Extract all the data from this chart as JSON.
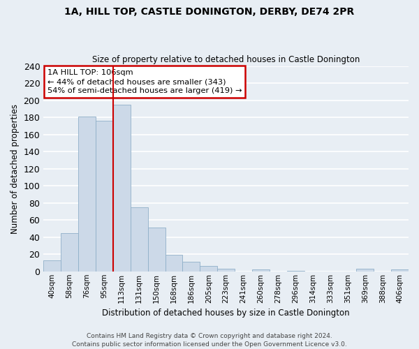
{
  "title": "1A, HILL TOP, CASTLE DONINGTON, DERBY, DE74 2PR",
  "subtitle": "Size of property relative to detached houses in Castle Donington",
  "xlabel": "Distribution of detached houses by size in Castle Donington",
  "ylabel": "Number of detached properties",
  "bin_labels": [
    "40sqm",
    "58sqm",
    "76sqm",
    "95sqm",
    "113sqm",
    "131sqm",
    "150sqm",
    "168sqm",
    "186sqm",
    "205sqm",
    "223sqm",
    "241sqm",
    "260sqm",
    "278sqm",
    "296sqm",
    "314sqm",
    "333sqm",
    "351sqm",
    "369sqm",
    "388sqm",
    "406sqm"
  ],
  "bar_heights": [
    13,
    45,
    181,
    176,
    195,
    75,
    51,
    19,
    11,
    6,
    3,
    0,
    2,
    0,
    1,
    0,
    0,
    0,
    3,
    0,
    2
  ],
  "bar_color": "#ccd9e8",
  "bar_edge_color": "#8fafc8",
  "vline_color": "#cc0000",
  "ylim": [
    0,
    240
  ],
  "yticks": [
    0,
    20,
    40,
    60,
    80,
    100,
    120,
    140,
    160,
    180,
    200,
    220,
    240
  ],
  "annotation_title": "1A HILL TOP: 106sqm",
  "annotation_line1": "← 44% of detached houses are smaller (343)",
  "annotation_line2": "54% of semi-detached houses are larger (419) →",
  "annotation_box_color": "#ffffff",
  "annotation_box_edge": "#cc0000",
  "footer_line1": "Contains HM Land Registry data © Crown copyright and database right 2024.",
  "footer_line2": "Contains public sector information licensed under the Open Government Licence v3.0.",
  "background_color": "#e8eef4",
  "grid_color": "#ffffff",
  "axis_bg_color": "#e8eef4"
}
